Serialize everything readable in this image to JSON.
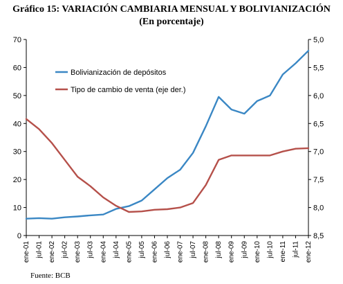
{
  "title": "Gráfico 15: VARIACIÓN CAMBIARIA MENSUAL Y BOLIVIANIZACIÓN",
  "subtitle": "(En porcentaje)",
  "source": "Fuente: BCB",
  "chart_data": {
    "type": "line",
    "grid": false,
    "legend_position": "upper-left inside plot",
    "y_left": {
      "range": [
        0,
        70
      ],
      "ticks": [
        "0",
        "10",
        "20",
        "30",
        "40",
        "50",
        "60",
        "70"
      ]
    },
    "y_right": {
      "range": [
        8.5,
        5.0
      ],
      "inverted": true,
      "ticks": [
        "5,0",
        "5,5",
        "6,0",
        "6,5",
        "7,0",
        "7,5",
        "8,0",
        "8,5"
      ]
    },
    "x_ticks": [
      "ene-01",
      "jul-01",
      "ene-02",
      "jul-02",
      "ene-03",
      "jul-03",
      "ene-04",
      "jul-04",
      "ene-05",
      "jul-05",
      "ene-06",
      "jul-06",
      "ene-07",
      "jul-07",
      "ene-08",
      "jul-08",
      "ene-09",
      "jul-09",
      "ene-10",
      "jul-10",
      "ene-11",
      "jul-11",
      "ene-12"
    ],
    "series": [
      {
        "name": "Bolivianización de depósitos",
        "axis": "left",
        "color": "#3a87c4",
        "points": [
          [
            "ene-01",
            6.0
          ],
          [
            "jul-01",
            6.2
          ],
          [
            "ene-02",
            6.0
          ],
          [
            "jul-02",
            6.5
          ],
          [
            "ene-03",
            6.8
          ],
          [
            "jul-03",
            7.2
          ],
          [
            "ene-04",
            7.5
          ],
          [
            "jul-04",
            9.5
          ],
          [
            "ene-05",
            10.5
          ],
          [
            "jul-05",
            12.5
          ],
          [
            "ene-06",
            16.5
          ],
          [
            "jul-06",
            20.5
          ],
          [
            "ene-07",
            23.5
          ],
          [
            "jul-07",
            29.5
          ],
          [
            "ene-08",
            39.0
          ],
          [
            "jul-08",
            49.5
          ],
          [
            "ene-09",
            45.0
          ],
          [
            "jul-09",
            43.5
          ],
          [
            "ene-10",
            48.0
          ],
          [
            "jul-10",
            50.0
          ],
          [
            "ene-11",
            57.5
          ],
          [
            "jul-11",
            61.5
          ],
          [
            "ene-12",
            66.0
          ]
        ]
      },
      {
        "name": "Tipo de  cambio de venta (eje der.)",
        "axis": "right",
        "color": "#b5504a",
        "points": [
          [
            "ene-01",
            6.42
          ],
          [
            "jul-01",
            6.6
          ],
          [
            "ene-02",
            6.85
          ],
          [
            "jul-02",
            7.15
          ],
          [
            "ene-03",
            7.45
          ],
          [
            "jul-03",
            7.62
          ],
          [
            "ene-04",
            7.82
          ],
          [
            "jul-04",
            7.97
          ],
          [
            "ene-05",
            8.08
          ],
          [
            "jul-05",
            8.07
          ],
          [
            "ene-06",
            8.04
          ],
          [
            "jul-06",
            8.03
          ],
          [
            "ene-07",
            8.0
          ],
          [
            "jul-07",
            7.92
          ],
          [
            "ene-08",
            7.6
          ],
          [
            "jul-08",
            7.15
          ],
          [
            "ene-09",
            7.07
          ],
          [
            "jul-09",
            7.07
          ],
          [
            "ene-10",
            7.07
          ],
          [
            "jul-10",
            7.07
          ],
          [
            "ene-11",
            7.0
          ],
          [
            "jul-11",
            6.95
          ],
          [
            "ene-12",
            6.94
          ]
        ]
      }
    ]
  }
}
